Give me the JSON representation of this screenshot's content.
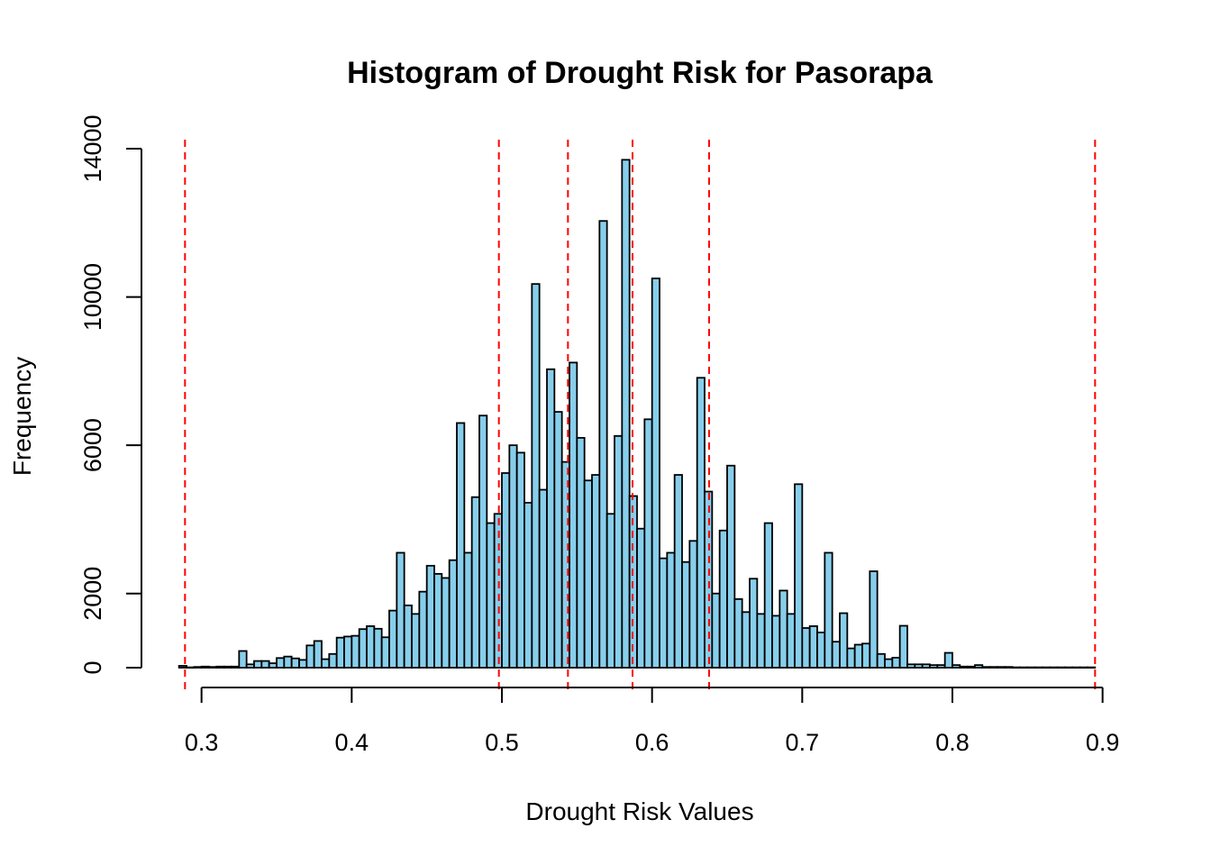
{
  "chart_data": {
    "type": "bar",
    "title": "Histogram of Drought Risk for Pasorapa",
    "xlabel": "Drought Risk Values",
    "ylabel": "Frequency",
    "xlim": [
      0.284,
      0.896
    ],
    "ylim": [
      0,
      14000
    ],
    "x_ticks": [
      0.3,
      0.4,
      0.5,
      0.6,
      0.7,
      0.8,
      0.9
    ],
    "x_tick_labels": [
      "0.3",
      "0.4",
      "0.5",
      "0.6",
      "0.7",
      "0.8",
      "0.9"
    ],
    "y_ticks": [
      0,
      2000,
      6000,
      10000,
      14000
    ],
    "y_tick_labels": [
      "0",
      "2000",
      "6000",
      "10000",
      "14000"
    ],
    "bin_start": 0.285,
    "bin_width": 0.005,
    "frequencies": [
      50,
      10,
      20,
      30,
      20,
      30,
      30,
      30,
      450,
      90,
      180,
      180,
      120,
      260,
      300,
      250,
      210,
      600,
      720,
      230,
      370,
      810,
      840,
      860,
      1040,
      1120,
      1050,
      820,
      1540,
      3100,
      1680,
      1450,
      2050,
      2750,
      2530,
      2420,
      2900,
      6600,
      3100,
      4600,
      6800,
      3900,
      4150,
      5250,
      6000,
      5800,
      4450,
      10350,
      4800,
      8050,
      6900,
      5550,
      8230,
      6200,
      5050,
      5200,
      12050,
      4150,
      6250,
      13700,
      4630,
      3750,
      6700,
      10500,
      2950,
      3100,
      5200,
      2850,
      3420,
      7820,
      4750,
      2000,
      3700,
      5450,
      1850,
      1500,
      2400,
      1450,
      3900,
      1400,
      2080,
      1450,
      4950,
      1070,
      1120,
      950,
      3100,
      700,
      1470,
      520,
      620,
      650,
      2600,
      370,
      230,
      270,
      1130,
      90,
      90,
      90,
      70,
      70,
      400,
      70,
      30,
      30,
      70,
      20,
      20,
      20,
      20,
      10,
      10,
      10,
      10,
      10,
      10,
      10,
      10,
      10,
      10,
      10
    ],
    "bar_color": "#87CEEB",
    "bar_border_color": "#000000",
    "vlines": [
      0.289,
      0.498,
      0.544,
      0.587,
      0.638,
      0.895
    ],
    "vline_color": "#FF0000",
    "vline_style": "dashed",
    "grid": false
  }
}
